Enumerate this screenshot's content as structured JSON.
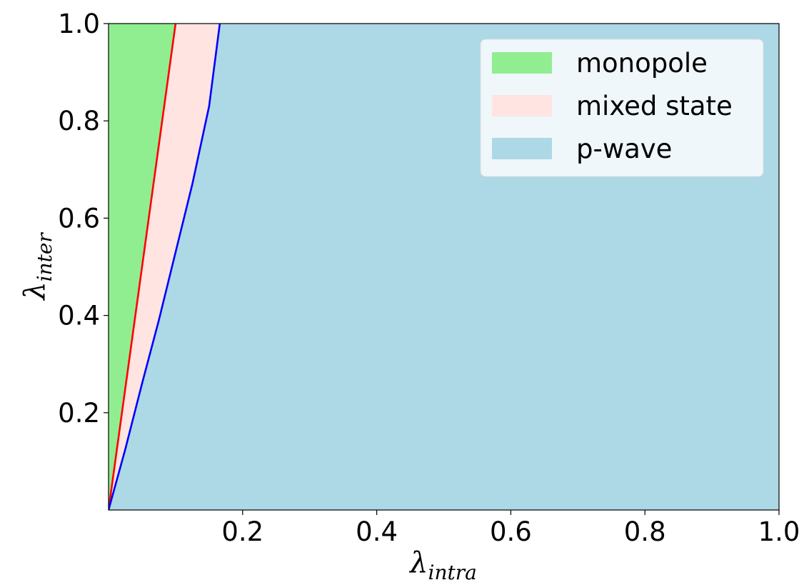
{
  "chart_data": {
    "type": "area",
    "xlabel": {
      "symbol": "λ",
      "subscript": "intra"
    },
    "ylabel": {
      "symbol": "λ",
      "subscript": "inter"
    },
    "xlim": [
      0.0,
      1.0
    ],
    "ylim": [
      0.0,
      1.0
    ],
    "xticks": [
      {
        "value": 0.2,
        "label": "0.2"
      },
      {
        "value": 0.4,
        "label": "0.4"
      },
      {
        "value": 0.6,
        "label": "0.6"
      },
      {
        "value": 0.8,
        "label": "0.8"
      },
      {
        "value": 1.0,
        "label": "1.0"
      }
    ],
    "yticks": [
      {
        "value": 0.2,
        "label": "0.2"
      },
      {
        "value": 0.4,
        "label": "0.4"
      },
      {
        "value": 0.6,
        "label": "0.6"
      },
      {
        "value": 0.8,
        "label": "0.8"
      },
      {
        "value": 1.0,
        "label": "1.0"
      }
    ],
    "grid": false,
    "legend_position": "top-right",
    "background_region": {
      "name": "p-wave",
      "color": "#add8e6"
    },
    "boundaries": [
      {
        "color": "#ff0000",
        "x": [
          0.0,
          0.02,
          0.04,
          0.06,
          0.08,
          0.1
        ],
        "y": [
          0.0,
          0.2,
          0.4,
          0.6,
          0.8,
          1.0
        ]
      },
      {
        "color": "#0000ff",
        "x": [
          0.0,
          0.025,
          0.05,
          0.075,
          0.1,
          0.125,
          0.15,
          0.166
        ],
        "y": [
          0.0,
          0.125,
          0.26,
          0.39,
          0.53,
          0.67,
          0.83,
          1.0
        ]
      }
    ],
    "regions": [
      {
        "name": "monopole",
        "color": "#90ee90",
        "left": "y-axis",
        "right": 0
      },
      {
        "name": "mixed state",
        "color": "#ffe4e1",
        "left": 0,
        "right": 1
      }
    ],
    "legend": [
      {
        "label": "monopole",
        "color": "#90ee90"
      },
      {
        "label": "mixed state",
        "color": "#ffe4e1"
      },
      {
        "label": "p-wave",
        "color": "#add8e6"
      }
    ]
  }
}
